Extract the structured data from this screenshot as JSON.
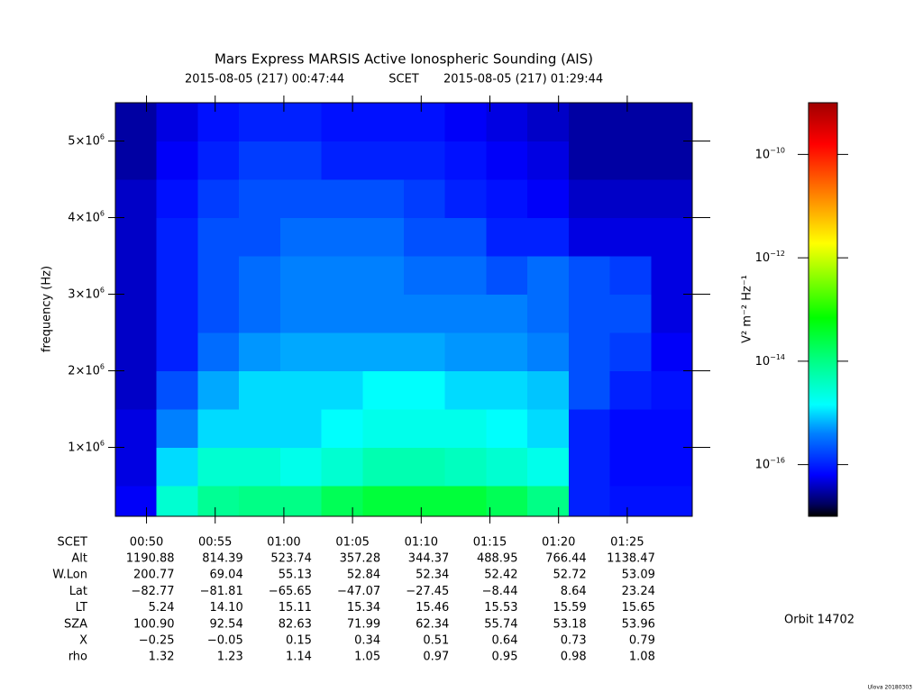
{
  "chart_data": {
    "type": "spectrogram",
    "title": "Mars Express MARSIS Active Ionospheric Sounding (AIS)",
    "xlim": [
      "2015-08-05 (217) 00:47:44",
      "2015-08-05 (217) 01:29:44"
    ],
    "time_scale": "SCET",
    "xticks": [
      "00:50",
      "00:55",
      "01:00",
      "01:05",
      "01:10",
      "01:15",
      "01:20",
      "01:25"
    ],
    "ylabel": "frequency (Hz)",
    "ylim": [
      100000,
      5500000
    ],
    "yticks": [
      {
        "value": 1000000,
        "label": "1×10",
        "sup": "6"
      },
      {
        "value": 2000000,
        "label": "2×10",
        "sup": "6"
      },
      {
        "value": 3000000,
        "label": "3×10",
        "sup": "6"
      },
      {
        "value": 4000000,
        "label": "4×10",
        "sup": "6"
      },
      {
        "value": 5000000,
        "label": "5×10",
        "sup": "6"
      }
    ],
    "time_bins": [
      "00:47:44",
      "00:50:44",
      "00:53:44",
      "00:56:44",
      "00:59:44",
      "01:02:44",
      "01:05:44",
      "01:08:44",
      "01:11:44",
      "01:14:44",
      "01:17:44",
      "01:20:44",
      "01:23:44",
      "01:26:44",
      "01:29:44"
    ],
    "frequency_bins": [
      100000,
      500000,
      1000000,
      1500000,
      2000000,
      2500000,
      3000000,
      3500000,
      4000000,
      4500000,
      5000000,
      5500000
    ],
    "values": [
      [
        6e-17,
        3e-15,
        8e-15,
        1e-14,
        1e-14,
        2e-14,
        3e-14,
        3e-14,
        3e-14,
        2e-14,
        1e-14,
        1e-16,
        8e-17,
        8e-17
      ],
      [
        5e-17,
        1e-15,
        3e-15,
        3e-15,
        2e-15,
        3e-15,
        5e-15,
        5e-15,
        4e-15,
        3e-15,
        2e-15,
        1e-16,
        7e-17,
        7e-17
      ],
      [
        5e-17,
        4e-16,
        1e-15,
        1e-15,
        1e-15,
        1.5e-15,
        2e-15,
        2e-15,
        2e-15,
        1.5e-15,
        1e-15,
        1e-16,
        7e-17,
        7e-17
      ],
      [
        4e-17,
        2e-16,
        6e-16,
        1e-15,
        1e-15,
        1e-15,
        1.5e-15,
        1.5e-15,
        1e-15,
        1e-15,
        8e-16,
        2e-16,
        1e-16,
        8e-17
      ],
      [
        4e-17,
        1e-16,
        3e-16,
        5e-16,
        6e-16,
        6e-16,
        6e-16,
        6e-16,
        5e-16,
        5e-16,
        4e-16,
        2e-16,
        1.5e-16,
        6e-17
      ],
      [
        4e-17,
        1e-16,
        2e-16,
        3e-16,
        4e-16,
        4e-16,
        4e-16,
        4e-16,
        4e-16,
        4e-16,
        3e-16,
        2e-16,
        2e-16,
        5e-17
      ],
      [
        4e-17,
        1e-16,
        2e-16,
        3e-16,
        4e-16,
        4e-16,
        4e-16,
        3e-16,
        3e-16,
        2e-16,
        3e-16,
        2e-16,
        1.5e-16,
        5e-17
      ],
      [
        4e-17,
        1e-16,
        2e-16,
        2e-16,
        3e-16,
        3e-16,
        3e-16,
        2e-16,
        2e-16,
        1e-16,
        1e-16,
        5e-17,
        5e-17,
        5e-17
      ],
      [
        4e-17,
        8e-17,
        1.5e-16,
        2e-16,
        2e-16,
        2e-16,
        2e-16,
        1.5e-16,
        1e-16,
        8e-17,
        6e-17,
        4e-17,
        4e-17,
        4e-17
      ],
      [
        3e-17,
        6e-17,
        1e-16,
        1.5e-16,
        1.5e-16,
        1e-16,
        1e-16,
        1e-16,
        8e-17,
        6e-17,
        5e-17,
        3e-17,
        3e-17,
        3e-17
      ],
      [
        3e-17,
        5e-17,
        8e-17,
        1e-16,
        1e-16,
        8e-17,
        8e-17,
        8e-17,
        6e-17,
        5e-17,
        4e-17,
        3e-17,
        3e-17,
        3e-17
      ]
    ],
    "colorbar_label": "V² m⁻² Hz⁻¹",
    "clim": [
      1e-17,
      1e-09
    ],
    "clog": true,
    "cticks": [
      {
        "value": 1e-16,
        "label": "10",
        "sup": "−16"
      },
      {
        "value": 1e-14,
        "label": "10",
        "sup": "−14"
      },
      {
        "value": 1e-12,
        "label": "10",
        "sup": "−12"
      },
      {
        "value": 1e-10,
        "label": "10",
        "sup": "−10"
      }
    ],
    "colormap": [
      [
        0,
        "#000000"
      ],
      [
        0.03,
        "#000060"
      ],
      [
        0.1,
        "#0000ff"
      ],
      [
        0.2,
        "#0080ff"
      ],
      [
        0.27,
        "#00ffff"
      ],
      [
        0.38,
        "#00ff80"
      ],
      [
        0.48,
        "#00ff00"
      ],
      [
        0.66,
        "#ffff00"
      ],
      [
        0.78,
        "#ff8000"
      ],
      [
        0.9,
        "#ff0000"
      ],
      [
        1,
        "#a00000"
      ]
    ],
    "ephemeris": {
      "scet_label": "SCET",
      "rows": [
        {
          "label": "Alt",
          "values": [
            "1190.88",
            "814.39",
            "523.74",
            "357.28",
            "344.37",
            "488.95",
            "766.44",
            "1138.47"
          ]
        },
        {
          "label": "W.Lon",
          "values": [
            "200.77",
            "69.04",
            "55.13",
            "52.84",
            "52.34",
            "52.42",
            "52.72",
            "53.09"
          ]
        },
        {
          "label": "Lat",
          "values": [
            "−82.77",
            "−81.81",
            "−65.65",
            "−47.07",
            "−27.45",
            "−8.44",
            "8.64",
            "23.24"
          ]
        },
        {
          "label": "LT",
          "values": [
            "5.24",
            "14.10",
            "15.11",
            "15.34",
            "15.46",
            "15.53",
            "15.59",
            "15.65"
          ]
        },
        {
          "label": "SZA",
          "values": [
            "100.90",
            "92.54",
            "82.63",
            "71.99",
            "62.34",
            "55.74",
            "53.18",
            "53.96"
          ]
        },
        {
          "label": "X",
          "values": [
            "−0.25",
            "−0.05",
            "0.15",
            "0.34",
            "0.51",
            "0.64",
            "0.73",
            "0.79"
          ]
        },
        {
          "label": "rho",
          "values": [
            "1.32",
            "1.23",
            "1.14",
            "1.05",
            "0.97",
            "0.95",
            "0.98",
            "1.08"
          ]
        }
      ]
    },
    "orbit": "Orbit 14702",
    "credit": "Ulova 20180303"
  }
}
